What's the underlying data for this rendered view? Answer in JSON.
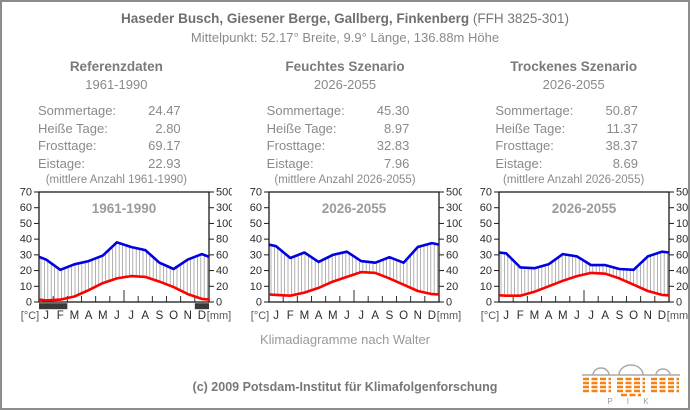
{
  "header": {
    "title_bold": "Haseder Busch, Giesener Berge, Gallberg, Finkenberg",
    "title_normal": " (FFH 3825-301)",
    "subtitle": "Mittelpunkt: 52.17° Breite, 9.9° Länge, 136.88m Höhe"
  },
  "panels": [
    {
      "title": "Referenzdaten",
      "period": "1961-1990",
      "stats": [
        {
          "label": "Sommertage:",
          "value": "24.47"
        },
        {
          "label": "Heiße Tage:",
          "value": "2.80"
        },
        {
          "label": "Frosttage:",
          "value": "69.17"
        },
        {
          "label": "Eistage:",
          "value": "22.93"
        }
      ],
      "note": "(mittlere Anzahl 1961-1990)"
    },
    {
      "title": "Feuchtes Szenario",
      "period": "2026-2055",
      "stats": [
        {
          "label": "Sommertage:",
          "value": "45.30"
        },
        {
          "label": "Heiße Tage:",
          "value": "8.97"
        },
        {
          "label": "Frosttage:",
          "value": "32.83"
        },
        {
          "label": "Eistage:",
          "value": "7.96"
        }
      ],
      "note": "(mittlere Anzahl 2026-2055)"
    },
    {
      "title": "Trockenes Szenario",
      "period": "2026-2055",
      "stats": [
        {
          "label": "Sommertage:",
          "value": "50.87"
        },
        {
          "label": "Heiße Tage:",
          "value": "11.37"
        },
        {
          "label": "Frosttage:",
          "value": "38.37"
        },
        {
          "label": "Eistage:",
          "value": "8.69"
        }
      ],
      "note": "(mittlere Anzahl 2026-2055)"
    }
  ],
  "charts_config": {
    "temperature_color": "#ff0000",
    "precipitation_color": "#0000e0",
    "hatch_color": "#9c9c9c",
    "frost_bar_color": "#3a3a3a",
    "frame_color": "#1a1a1a",
    "title_color": "#9b9b9b",
    "tick_label_color": "#2b2b2b",
    "unit_label_color": "#555555"
  },
  "chart_data": [
    {
      "type": "line",
      "title": "1961-1990",
      "x_categories": [
        "J",
        "F",
        "M",
        "A",
        "M",
        "J",
        "J",
        "A",
        "S",
        "O",
        "N",
        "D"
      ],
      "left_axis": {
        "label": "[°C]",
        "range": [
          0,
          70
        ],
        "ticks": [
          0,
          10,
          20,
          30,
          40,
          50,
          60,
          70
        ]
      },
      "right_axis": {
        "label": "[mm]",
        "ticks": [
          0,
          20,
          40,
          60,
          80,
          100,
          300,
          500
        ]
      },
      "series": [
        {
          "name": "Temperatur",
          "unit": "°C",
          "values": [
            1.0,
            1.5,
            3.5,
            7.5,
            12.0,
            15.0,
            16.5,
            16.0,
            13.0,
            9.5,
            5.0,
            2.0
          ]
        },
        {
          "name": "Niederschlag",
          "unit": "mm",
          "values": [
            54,
            41,
            48,
            52,
            59,
            76,
            70,
            66,
            50,
            42,
            54,
            61
          ]
        }
      ],
      "frost_bar_month_spans": [
        [
          0,
          2
        ],
        [
          11,
          12
        ]
      ],
      "legend": "Klimadiagramm nach Walter: rote Linie Temperatur, blaue Linie Niederschlag, schraffiert humide Periode, schwarze Balken Frostmonate"
    },
    {
      "type": "line",
      "title": "2026-2055",
      "x_categories": [
        "J",
        "F",
        "M",
        "A",
        "M",
        "J",
        "J",
        "A",
        "S",
        "O",
        "N",
        "D"
      ],
      "left_axis": {
        "label": "[°C]",
        "range": [
          0,
          70
        ],
        "ticks": [
          0,
          10,
          20,
          30,
          40,
          50,
          60,
          70
        ]
      },
      "right_axis": {
        "label": "[mm]",
        "ticks": [
          0,
          20,
          40,
          60,
          80,
          100,
          300,
          500
        ]
      },
      "series": [
        {
          "name": "Temperatur",
          "unit": "°C",
          "values": [
            4.5,
            4.0,
            6.0,
            9.0,
            13.0,
            16.0,
            19.0,
            18.5,
            15.0,
            11.0,
            7.0,
            5.0
          ]
        },
        {
          "name": "Niederschlag",
          "unit": "mm",
          "values": [
            71,
            56,
            63,
            51,
            60,
            64,
            52,
            50,
            57,
            50,
            70,
            75
          ]
        }
      ],
      "frost_bar_month_spans": [],
      "legend": "Klimadiagramm nach Walter: rote Linie Temperatur, blaue Linie Niederschlag, schraffiert humide Periode"
    },
    {
      "type": "line",
      "title": "2026-2055",
      "x_categories": [
        "J",
        "F",
        "M",
        "A",
        "M",
        "J",
        "J",
        "A",
        "S",
        "O",
        "N",
        "D"
      ],
      "left_axis": {
        "label": "[°C]",
        "range": [
          0,
          70
        ],
        "ticks": [
          0,
          10,
          20,
          30,
          40,
          50,
          60,
          70
        ]
      },
      "right_axis": {
        "label": "[mm]",
        "ticks": [
          0,
          20,
          40,
          60,
          80,
          100,
          300,
          500
        ]
      },
      "series": [
        {
          "name": "Temperatur",
          "unit": "°C",
          "values": [
            4.0,
            4.0,
            6.5,
            10.0,
            13.5,
            16.5,
            18.5,
            18.0,
            15.0,
            11.0,
            7.0,
            4.5
          ]
        },
        {
          "name": "Niederschlag",
          "unit": "mm",
          "values": [
            62,
            44,
            43,
            48,
            61,
            58,
            47,
            47,
            42,
            41,
            58,
            64
          ]
        }
      ],
      "frost_bar_month_spans": [],
      "legend": "Klimadiagramm nach Walter: rote Linie Temperatur, blaue Linie Niederschlag, schraffiert humide Periode"
    }
  ],
  "footer": {
    "caption": "Klimadiagramme nach Walter",
    "copyright": "(c) 2009 Potsdam-Institut für Klimafolgenforschung",
    "logo_text": "P I K"
  }
}
